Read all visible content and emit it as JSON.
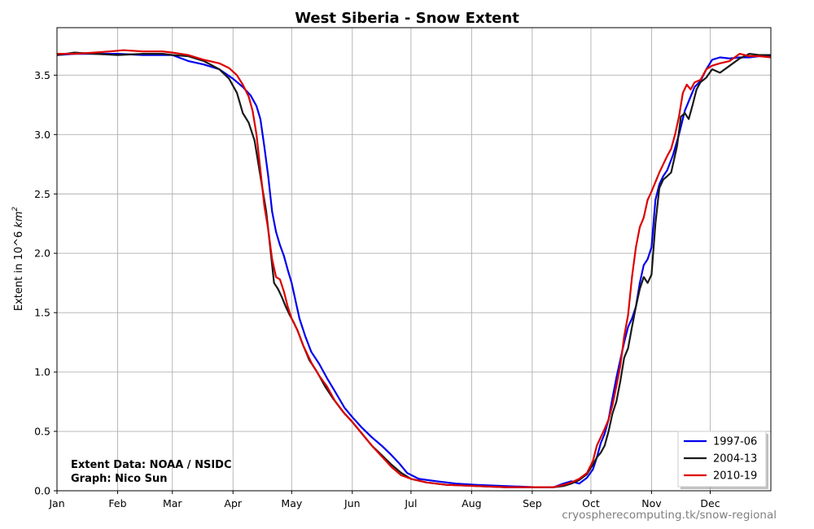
{
  "chart_data": {
    "type": "line",
    "title": "West Siberia - Snow Extent",
    "ylabel_prefix": "Extent in 10^6 ",
    "ylabel_unit": "km",
    "ylabel_exp": "2",
    "ylim": [
      0,
      3.9
    ],
    "xlim": [
      1,
      366
    ],
    "yticks": [
      0.0,
      0.5,
      1.0,
      1.5,
      2.0,
      2.5,
      3.0,
      3.5
    ],
    "ytick_labels": [
      "0.0",
      "0.5",
      "1.0",
      "1.5",
      "2.0",
      "2.5",
      "3.0",
      "3.5"
    ],
    "xticks": [
      1,
      32,
      60,
      91,
      121,
      152,
      182,
      213,
      244,
      274,
      305,
      335
    ],
    "xtick_labels": [
      "Jan",
      "Feb",
      "Mar",
      "Apr",
      "May",
      "Jun",
      "Jul",
      "Aug",
      "Sep",
      "Oct",
      "Nov",
      "Dec"
    ],
    "grid": true,
    "legend_position": "bottom-right",
    "series": [
      {
        "name": "1997-06",
        "color": "#0000ee",
        "points": [
          [
            1,
            3.67
          ],
          [
            10,
            3.68
          ],
          [
            20,
            3.68
          ],
          [
            32,
            3.68
          ],
          [
            45,
            3.67
          ],
          [
            55,
            3.67
          ],
          [
            60,
            3.67
          ],
          [
            68,
            3.62
          ],
          [
            76,
            3.59
          ],
          [
            84,
            3.55
          ],
          [
            91,
            3.47
          ],
          [
            96,
            3.4
          ],
          [
            100,
            3.33
          ],
          [
            103,
            3.24
          ],
          [
            105,
            3.13
          ],
          [
            107,
            2.9
          ],
          [
            109,
            2.65
          ],
          [
            111,
            2.35
          ],
          [
            113,
            2.18
          ],
          [
            115,
            2.07
          ],
          [
            117,
            1.98
          ],
          [
            119,
            1.86
          ],
          [
            121,
            1.75
          ],
          [
            123,
            1.6
          ],
          [
            125,
            1.45
          ],
          [
            128,
            1.3
          ],
          [
            131,
            1.17
          ],
          [
            135,
            1.07
          ],
          [
            139,
            0.95
          ],
          [
            143,
            0.84
          ],
          [
            148,
            0.7
          ],
          [
            152,
            0.62
          ],
          [
            157,
            0.53
          ],
          [
            162,
            0.45
          ],
          [
            167,
            0.38
          ],
          [
            172,
            0.3
          ],
          [
            176,
            0.23
          ],
          [
            180,
            0.15
          ],
          [
            186,
            0.1
          ],
          [
            195,
            0.08
          ],
          [
            205,
            0.06
          ],
          [
            215,
            0.05
          ],
          [
            230,
            0.04
          ],
          [
            245,
            0.03
          ],
          [
            255,
            0.03
          ],
          [
            260,
            0.06
          ],
          [
            264,
            0.08
          ],
          [
            268,
            0.06
          ],
          [
            272,
            0.11
          ],
          [
            275,
            0.18
          ],
          [
            277,
            0.28
          ],
          [
            279,
            0.4
          ],
          [
            281,
            0.48
          ],
          [
            283,
            0.6
          ],
          [
            285,
            0.78
          ],
          [
            287,
            0.95
          ],
          [
            289,
            1.1
          ],
          [
            291,
            1.25
          ],
          [
            293,
            1.38
          ],
          [
            295,
            1.45
          ],
          [
            297,
            1.55
          ],
          [
            299,
            1.75
          ],
          [
            301,
            1.9
          ],
          [
            303,
            1.95
          ],
          [
            305,
            2.05
          ],
          [
            307,
            2.45
          ],
          [
            309,
            2.58
          ],
          [
            311,
            2.65
          ],
          [
            313,
            2.7
          ],
          [
            316,
            2.83
          ],
          [
            319,
            3.0
          ],
          [
            322,
            3.2
          ],
          [
            325,
            3.32
          ],
          [
            327,
            3.4
          ],
          [
            330,
            3.45
          ],
          [
            333,
            3.55
          ],
          [
            336,
            3.63
          ],
          [
            340,
            3.65
          ],
          [
            345,
            3.64
          ],
          [
            350,
            3.65
          ],
          [
            355,
            3.65
          ],
          [
            360,
            3.66
          ],
          [
            366,
            3.66
          ]
        ]
      },
      {
        "name": "2004-13",
        "color": "#1a1a1a",
        "points": [
          [
            1,
            3.67
          ],
          [
            10,
            3.69
          ],
          [
            20,
            3.68
          ],
          [
            32,
            3.67
          ],
          [
            45,
            3.68
          ],
          [
            55,
            3.68
          ],
          [
            60,
            3.67
          ],
          [
            68,
            3.66
          ],
          [
            76,
            3.62
          ],
          [
            84,
            3.55
          ],
          [
            89,
            3.47
          ],
          [
            93,
            3.35
          ],
          [
            96,
            3.18
          ],
          [
            99,
            3.1
          ],
          [
            102,
            2.95
          ],
          [
            104,
            2.75
          ],
          [
            106,
            2.55
          ],
          [
            108,
            2.35
          ],
          [
            110,
            2.05
          ],
          [
            112,
            1.75
          ],
          [
            114,
            1.7
          ],
          [
            116,
            1.63
          ],
          [
            118,
            1.55
          ],
          [
            120,
            1.48
          ],
          [
            122,
            1.42
          ],
          [
            124,
            1.35
          ],
          [
            127,
            1.22
          ],
          [
            130,
            1.1
          ],
          [
            134,
            1.0
          ],
          [
            138,
            0.88
          ],
          [
            142,
            0.78
          ],
          [
            147,
            0.67
          ],
          [
            152,
            0.58
          ],
          [
            157,
            0.48
          ],
          [
            162,
            0.38
          ],
          [
            167,
            0.3
          ],
          [
            172,
            0.22
          ],
          [
            177,
            0.15
          ],
          [
            182,
            0.1
          ],
          [
            190,
            0.07
          ],
          [
            200,
            0.05
          ],
          [
            215,
            0.04
          ],
          [
            230,
            0.03
          ],
          [
            245,
            0.03
          ],
          [
            255,
            0.03
          ],
          [
            260,
            0.04
          ],
          [
            264,
            0.06
          ],
          [
            268,
            0.09
          ],
          [
            272,
            0.14
          ],
          [
            275,
            0.22
          ],
          [
            277,
            0.28
          ],
          [
            279,
            0.32
          ],
          [
            281,
            0.38
          ],
          [
            283,
            0.5
          ],
          [
            285,
            0.65
          ],
          [
            287,
            0.75
          ],
          [
            289,
            0.92
          ],
          [
            291,
            1.12
          ],
          [
            293,
            1.2
          ],
          [
            295,
            1.38
          ],
          [
            297,
            1.55
          ],
          [
            299,
            1.7
          ],
          [
            301,
            1.8
          ],
          [
            303,
            1.75
          ],
          [
            305,
            1.82
          ],
          [
            307,
            2.25
          ],
          [
            309,
            2.55
          ],
          [
            311,
            2.62
          ],
          [
            313,
            2.65
          ],
          [
            315,
            2.68
          ],
          [
            318,
            2.9
          ],
          [
            320,
            3.15
          ],
          [
            322,
            3.18
          ],
          [
            324,
            3.13
          ],
          [
            326,
            3.25
          ],
          [
            328,
            3.38
          ],
          [
            330,
            3.44
          ],
          [
            333,
            3.48
          ],
          [
            336,
            3.55
          ],
          [
            340,
            3.52
          ],
          [
            345,
            3.58
          ],
          [
            350,
            3.64
          ],
          [
            355,
            3.68
          ],
          [
            360,
            3.67
          ],
          [
            366,
            3.67
          ]
        ]
      },
      {
        "name": "2010-19",
        "color": "#dd0000",
        "points": [
          [
            1,
            3.68
          ],
          [
            10,
            3.68
          ],
          [
            20,
            3.69
          ],
          [
            28,
            3.7
          ],
          [
            35,
            3.71
          ],
          [
            45,
            3.7
          ],
          [
            55,
            3.7
          ],
          [
            60,
            3.69
          ],
          [
            68,
            3.67
          ],
          [
            76,
            3.63
          ],
          [
            84,
            3.6
          ],
          [
            89,
            3.56
          ],
          [
            93,
            3.5
          ],
          [
            96,
            3.42
          ],
          [
            99,
            3.32
          ],
          [
            101,
            3.2
          ],
          [
            103,
            3.0
          ],
          [
            105,
            2.7
          ],
          [
            107,
            2.4
          ],
          [
            109,
            2.2
          ],
          [
            111,
            1.95
          ],
          [
            113,
            1.8
          ],
          [
            115,
            1.78
          ],
          [
            117,
            1.68
          ],
          [
            119,
            1.55
          ],
          [
            121,
            1.45
          ],
          [
            124,
            1.35
          ],
          [
            127,
            1.22
          ],
          [
            131,
            1.08
          ],
          [
            135,
            0.97
          ],
          [
            139,
            0.88
          ],
          [
            143,
            0.76
          ],
          [
            148,
            0.65
          ],
          [
            152,
            0.58
          ],
          [
            157,
            0.48
          ],
          [
            162,
            0.38
          ],
          [
            167,
            0.29
          ],
          [
            172,
            0.2
          ],
          [
            177,
            0.13
          ],
          [
            182,
            0.1
          ],
          [
            190,
            0.07
          ],
          [
            200,
            0.05
          ],
          [
            215,
            0.04
          ],
          [
            230,
            0.03
          ],
          [
            245,
            0.03
          ],
          [
            255,
            0.03
          ],
          [
            260,
            0.05
          ],
          [
            264,
            0.07
          ],
          [
            268,
            0.1
          ],
          [
            272,
            0.15
          ],
          [
            275,
            0.25
          ],
          [
            277,
            0.38
          ],
          [
            279,
            0.45
          ],
          [
            281,
            0.52
          ],
          [
            283,
            0.6
          ],
          [
            285,
            0.72
          ],
          [
            287,
            0.88
          ],
          [
            289,
            1.05
          ],
          [
            291,
            1.3
          ],
          [
            293,
            1.48
          ],
          [
            295,
            1.8
          ],
          [
            297,
            2.05
          ],
          [
            299,
            2.22
          ],
          [
            301,
            2.3
          ],
          [
            303,
            2.45
          ],
          [
            305,
            2.52
          ],
          [
            307,
            2.6
          ],
          [
            309,
            2.68
          ],
          [
            311,
            2.75
          ],
          [
            313,
            2.82
          ],
          [
            315,
            2.88
          ],
          [
            317,
            3.0
          ],
          [
            319,
            3.15
          ],
          [
            321,
            3.35
          ],
          [
            323,
            3.42
          ],
          [
            325,
            3.38
          ],
          [
            327,
            3.44
          ],
          [
            330,
            3.46
          ],
          [
            333,
            3.55
          ],
          [
            336,
            3.58
          ],
          [
            340,
            3.6
          ],
          [
            345,
            3.62
          ],
          [
            350,
            3.68
          ],
          [
            355,
            3.66
          ],
          [
            360,
            3.66
          ],
          [
            366,
            3.65
          ]
        ]
      }
    ],
    "annotations": [
      "Extent Data: NOAA / NSIDC",
      "Graph: Nico Sun"
    ],
    "credit": "cryospherecomputing.tk/snow-regional"
  }
}
